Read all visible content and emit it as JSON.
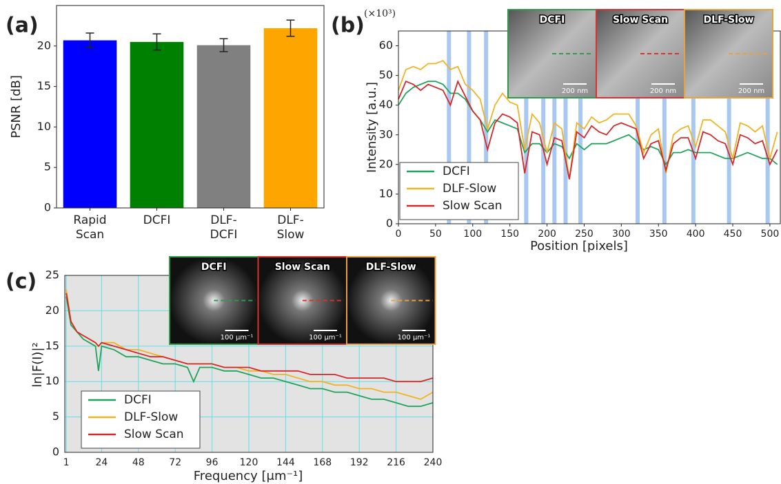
{
  "chart_data": [
    {
      "type": "bar",
      "panel_label": "(a)",
      "ylabel": "PSNR [dB]",
      "categories": [
        "Rapid Scan",
        "DCFI",
        "DLF-DCFI",
        "DLF-Slow"
      ],
      "values": [
        20.7,
        20.5,
        20.1,
        22.2
      ],
      "errors": [
        0.9,
        1.0,
        0.8,
        1.0
      ],
      "colors": [
        "#0000ff",
        "#008000",
        "#808080",
        "#ffa500"
      ],
      "ylim": [
        0,
        25
      ],
      "yticks": [
        0,
        5,
        10,
        15,
        20
      ],
      "grid": false
    },
    {
      "type": "line",
      "panel_label": "(b)",
      "xlabel": "Position [pixels]",
      "ylabel": "Intensity [a.u.]",
      "y_multiplier": "(×10³)",
      "x": [
        0,
        10,
        20,
        30,
        40,
        50,
        60,
        70,
        80,
        90,
        100,
        110,
        120,
        130,
        140,
        150,
        160,
        170,
        180,
        190,
        200,
        210,
        220,
        230,
        240,
        250,
        260,
        270,
        280,
        290,
        300,
        310,
        320,
        330,
        340,
        350,
        360,
        370,
        380,
        390,
        400,
        410,
        420,
        430,
        440,
        450,
        460,
        470,
        480,
        490,
        500,
        510
      ],
      "series": [
        {
          "name": "DCFI",
          "color": "#1fa35a",
          "values": [
            40,
            44,
            46,
            47,
            48,
            48,
            47,
            44,
            44,
            42,
            38,
            35,
            31,
            35,
            34,
            33,
            32,
            24,
            27,
            27,
            24,
            27,
            26,
            22,
            27,
            25,
            27,
            27,
            27,
            28,
            29,
            30,
            28,
            25,
            26,
            25,
            20,
            24,
            24,
            25,
            24,
            24,
            24,
            23,
            22,
            22,
            23,
            24,
            23,
            22,
            22,
            20
          ]
        },
        {
          "name": "DLF-Slow",
          "color": "#f0b323",
          "values": [
            45,
            52,
            53,
            52,
            54,
            54,
            55,
            52,
            53,
            47,
            45,
            42,
            32,
            40,
            44,
            41,
            40,
            25,
            37,
            34,
            24,
            34,
            32,
            15,
            34,
            32,
            36,
            34,
            35,
            37,
            37,
            37,
            33,
            24,
            30,
            32,
            17,
            30,
            32,
            33,
            26,
            35,
            35,
            33,
            31,
            22,
            34,
            33,
            31,
            33,
            22,
            31
          ]
        },
        {
          "name": "Slow Scan",
          "color": "#d62728",
          "values": [
            42,
            48,
            47,
            45,
            47,
            46,
            45,
            40,
            48,
            43,
            38,
            35,
            25,
            34,
            37,
            36,
            34,
            17,
            31,
            30,
            20,
            29,
            28,
            15,
            31,
            29,
            33,
            31,
            30,
            33,
            34,
            33,
            32,
            22,
            27,
            28,
            18,
            27,
            29,
            29,
            22,
            31,
            30,
            28,
            27,
            20,
            30,
            29,
            27,
            28,
            20,
            25
          ]
        }
      ],
      "highlight_x": [
        68,
        95,
        118,
        172,
        195,
        210,
        225,
        245,
        322,
        358,
        397,
        445,
        497
      ],
      "highlight_color": "#a9c8f0",
      "insets": [
        {
          "title": "DCFI",
          "scale_bar": "200 nm",
          "color": "#2e9a4a"
        },
        {
          "title": "Slow Scan",
          "scale_bar": "200 nm",
          "color": "#d93030"
        },
        {
          "title": "DLF-Slow",
          "scale_bar": "200 nm",
          "color": "#e8a23a"
        }
      ],
      "xlim": [
        0,
        514
      ],
      "xticks": [
        0,
        50,
        100,
        150,
        200,
        250,
        300,
        350,
        400,
        450,
        500
      ],
      "ylim": [
        0,
        65
      ],
      "yticks": [
        0,
        10,
        20,
        30,
        40,
        50,
        60
      ],
      "grid": false,
      "legend": "lower left"
    },
    {
      "type": "line",
      "panel_label": "(c)",
      "xlabel": "Frequency [μm⁻¹]",
      "ylabel": "ln|F(I)|²",
      "x": [
        1,
        4,
        8,
        12,
        16,
        20,
        22,
        24,
        32,
        40,
        48,
        56,
        64,
        72,
        80,
        84,
        88,
        96,
        104,
        112,
        120,
        128,
        136,
        144,
        152,
        160,
        168,
        176,
        184,
        192,
        200,
        208,
        216,
        224,
        232,
        240
      ],
      "series": [
        {
          "name": "DCFI",
          "color": "#1fa35a",
          "values": [
            22,
            18,
            17,
            16,
            15.5,
            15,
            11.5,
            15,
            14.5,
            13.5,
            13.5,
            13,
            12.5,
            12.5,
            12,
            10,
            12,
            12,
            11.5,
            11.5,
            11,
            10.5,
            10.5,
            10,
            9.5,
            9,
            9,
            8.5,
            8.5,
            8,
            7.5,
            7.5,
            7,
            6.5,
            6.5,
            7
          ]
        },
        {
          "name": "DLF-Slow",
          "color": "#f0b323",
          "values": [
            23,
            18.5,
            17,
            16.5,
            16,
            15.5,
            15,
            15.5,
            15.5,
            14.5,
            14.5,
            14,
            13.5,
            13,
            12.5,
            12.5,
            12.5,
            12.5,
            12,
            12,
            11.5,
            11.5,
            11,
            11,
            10.5,
            10,
            10,
            9.5,
            9.5,
            9,
            9,
            8.5,
            8.5,
            8,
            7.5,
            8.5
          ]
        },
        {
          "name": "Slow Scan",
          "color": "#d62728",
          "values": [
            22.5,
            18.5,
            17,
            16.5,
            16,
            15.5,
            15,
            15.5,
            15,
            14.5,
            14,
            13.5,
            13.5,
            13,
            12.5,
            12.5,
            12.5,
            12.5,
            12,
            12,
            12,
            11.5,
            11.5,
            11.5,
            11.5,
            11,
            11,
            11,
            10.5,
            10.5,
            10.5,
            10.5,
            10,
            10,
            10,
            10.5
          ]
        }
      ],
      "insets": [
        {
          "title": "DCFI",
          "scale_bar": "100 μm⁻¹",
          "color": "#2e9a4a"
        },
        {
          "title": "Slow Scan",
          "scale_bar": "100 μm⁻¹",
          "color": "#d93030"
        },
        {
          "title": "DLF-Slow",
          "scale_bar": "100 μm⁻¹",
          "color": "#e8a23a"
        }
      ],
      "xlim": [
        0,
        240
      ],
      "xticks": [
        1,
        24,
        48,
        72,
        96,
        120,
        144,
        168,
        192,
        216,
        240
      ],
      "ylim": [
        0,
        25
      ],
      "yticks": [
        0,
        5,
        10,
        15,
        20,
        25
      ],
      "grid": true,
      "grid_color": "#5fe0e8",
      "background": "#e3e3e3",
      "legend": "lower left"
    }
  ]
}
